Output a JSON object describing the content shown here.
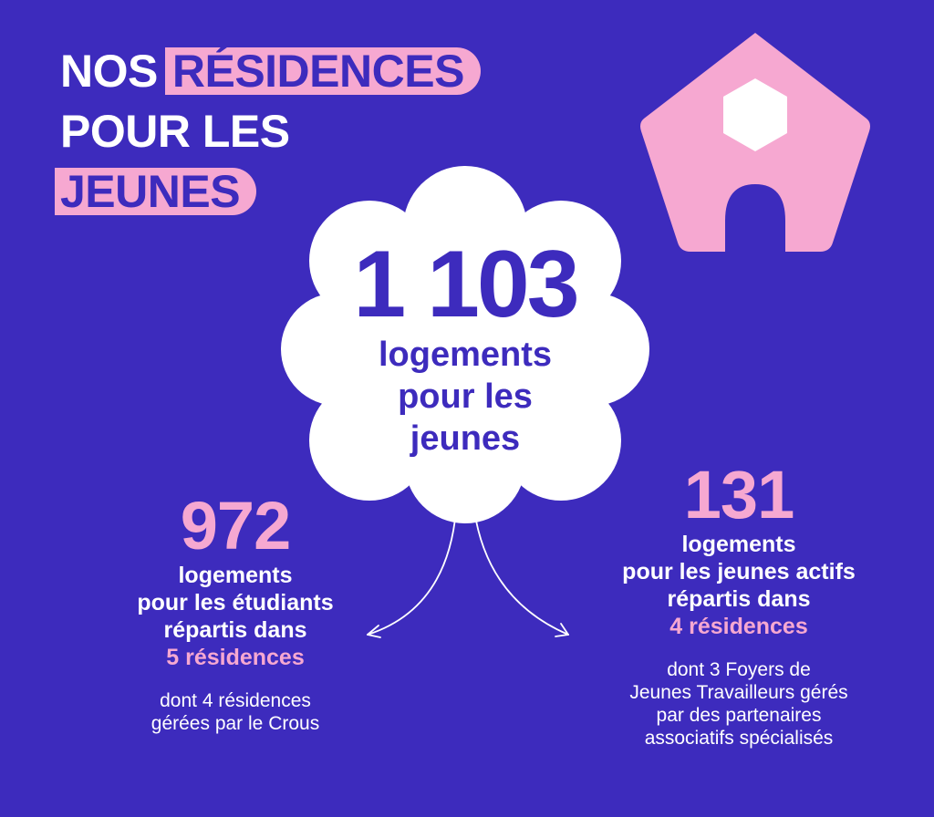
{
  "title": {
    "part1": "NOS",
    "part2": "RÉSIDENCES",
    "part3": "POUR LES",
    "part4": "JEUNES"
  },
  "center": {
    "number": "1 103",
    "line1": "logements",
    "line2": "pour les",
    "line3": "jeunes"
  },
  "left": {
    "number": "972",
    "line1": "logements",
    "line2": "pour les étudiants",
    "line3": "répartis dans",
    "accent": "5 résidences",
    "note1": "dont 4 résidences",
    "note2": "gérées par le Crous"
  },
  "right": {
    "number": "131",
    "line1": "logements",
    "line2": "pour les jeunes actifs",
    "line3": "répartis dans",
    "accent": "4 résidences",
    "note1": "dont 3 Foyers de",
    "note2": "Jeunes Travailleurs gérés",
    "note3": "par des partenaires",
    "note4": "associatifs spécialisés"
  },
  "colors": {
    "background": "#3d2bbd",
    "pink": "#f6a8d1",
    "white": "#ffffff"
  },
  "icons": {
    "house": "house-icon",
    "cloud": "cloud-shape",
    "arrows": "split-arrows-icon"
  }
}
